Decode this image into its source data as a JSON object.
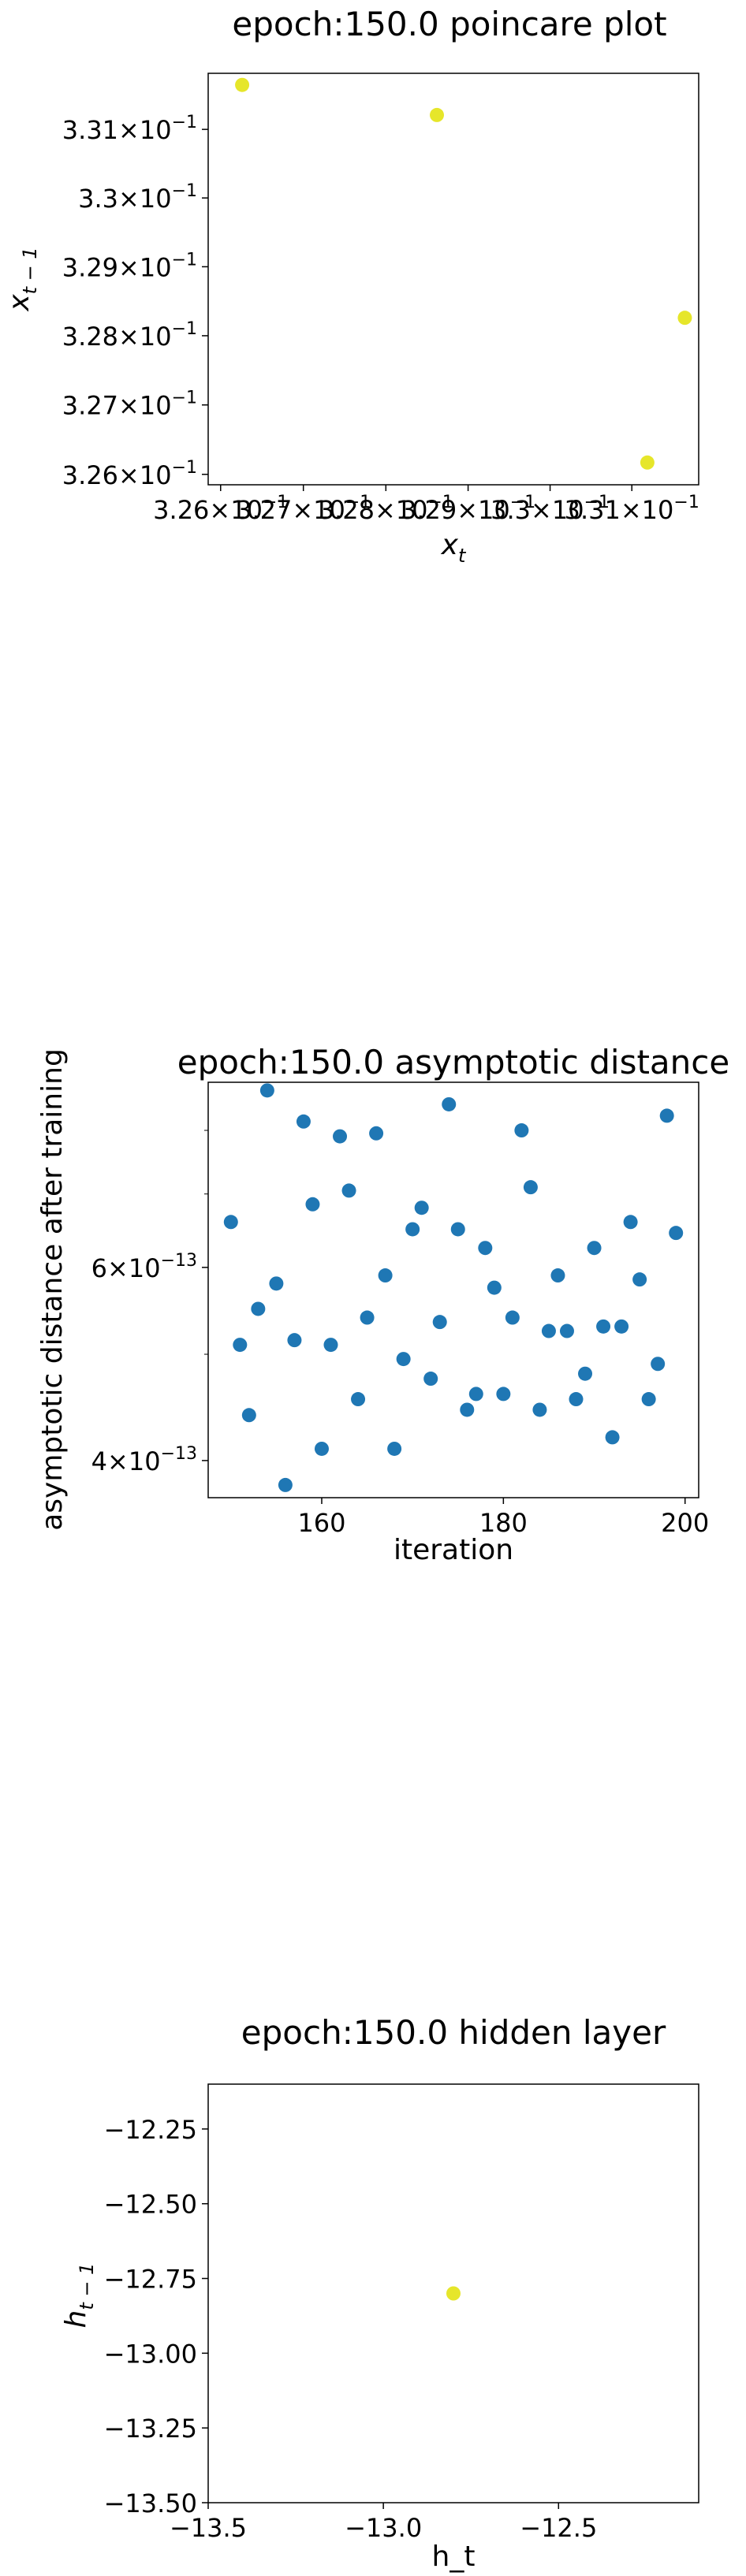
{
  "chart_data": [
    {
      "type": "scatter",
      "title": "epoch:150.0 poincare plot",
      "xlabel": "x",
      "xlabel_sub": "t",
      "ylabel": "x",
      "ylabel_sub": "t − 1",
      "xscale": "log",
      "yscale": "log",
      "xlim": [
        0.32585,
        0.33182
      ],
      "ylim": [
        0.32585,
        0.33182
      ],
      "x_ticks": [
        {
          "mant": "3.26",
          "exp": "−1",
          "v": 0.326
        },
        {
          "mant": "3.27",
          "exp": "−1",
          "v": 0.327
        },
        {
          "mant": "3.28",
          "exp": "−1",
          "v": 0.328
        },
        {
          "mant": "3.29",
          "exp": "−1",
          "v": 0.329
        },
        {
          "mant": "3.3",
          "exp": "−1",
          "v": 0.33
        },
        {
          "mant": "3.31",
          "exp": "−1",
          "v": 0.331
        }
      ],
      "y_ticks": [
        {
          "mant": "3.26",
          "exp": "−1",
          "v": 0.326
        },
        {
          "mant": "3.27",
          "exp": "−1",
          "v": 0.327
        },
        {
          "mant": "3.28",
          "exp": "−1",
          "v": 0.328
        },
        {
          "mant": "3.29",
          "exp": "−1",
          "v": 0.329
        },
        {
          "mant": "3.3",
          "exp": "−1",
          "v": 0.33
        },
        {
          "mant": "3.31",
          "exp": "−1",
          "v": 0.331
        }
      ],
      "points": [
        {
          "x": 0.32626,
          "y": 0.33165
        },
        {
          "x": 0.32862,
          "y": 0.33121
        },
        {
          "x": 0.33119,
          "y": 0.32617
        },
        {
          "x": 0.33165,
          "y": 0.32826
        }
      ],
      "marker_color": "#e6e62a",
      "grid": false
    },
    {
      "type": "scatter",
      "title": "epoch:150.0 asymptotic distance",
      "xlabel": "iteration",
      "ylabel": "asymptotic distance after training",
      "yscale": "log",
      "xlim": [
        147.5,
        201.5
      ],
      "ylim": [
        3.7e-13,
        8.85e-13
      ],
      "x_ticks": [
        {
          "label": "160",
          "v": 160
        },
        {
          "label": "180",
          "v": 180
        },
        {
          "label": "200",
          "v": 200
        }
      ],
      "y_ticks": [
        {
          "mant": "4",
          "exp": "−13",
          "v": 4e-13
        },
        {
          "mant": "6",
          "exp": "−13",
          "v": 6e-13
        }
      ],
      "y_minor_ticks": [
        5e-13,
        7e-13,
        8e-13
      ],
      "points": [
        {
          "x": 150,
          "y": 6.6e-13
        },
        {
          "x": 151,
          "y": 5.1e-13
        },
        {
          "x": 152,
          "y": 4.4e-13
        },
        {
          "x": 153,
          "y": 5.5e-13
        },
        {
          "x": 154,
          "y": 8.7e-13
        },
        {
          "x": 155,
          "y": 5.8e-13
        },
        {
          "x": 156,
          "y": 3.8e-13
        },
        {
          "x": 157,
          "y": 5.15e-13
        },
        {
          "x": 158,
          "y": 8.15e-13
        },
        {
          "x": 159,
          "y": 6.85e-13
        },
        {
          "x": 160,
          "y": 4.1e-13
        },
        {
          "x": 161,
          "y": 5.1e-13
        },
        {
          "x": 162,
          "y": 7.9e-13
        },
        {
          "x": 163,
          "y": 7.05e-13
        },
        {
          "x": 164,
          "y": 4.55e-13
        },
        {
          "x": 165,
          "y": 5.4e-13
        },
        {
          "x": 166,
          "y": 7.95e-13
        },
        {
          "x": 167,
          "y": 5.9e-13
        },
        {
          "x": 168,
          "y": 4.1e-13
        },
        {
          "x": 169,
          "y": 4.95e-13
        },
        {
          "x": 170,
          "y": 6.5e-13
        },
        {
          "x": 171,
          "y": 6.8e-13
        },
        {
          "x": 172,
          "y": 4.75e-13
        },
        {
          "x": 173,
          "y": 5.35e-13
        },
        {
          "x": 174,
          "y": 8.45e-13
        },
        {
          "x": 175,
          "y": 6.5e-13
        },
        {
          "x": 176,
          "y": 4.45e-13
        },
        {
          "x": 177,
          "y": 4.6e-13
        },
        {
          "x": 178,
          "y": 6.25e-13
        },
        {
          "x": 179,
          "y": 5.75e-13
        },
        {
          "x": 180,
          "y": 4.6e-13
        },
        {
          "x": 181,
          "y": 5.4e-13
        },
        {
          "x": 182,
          "y": 8e-13
        },
        {
          "x": 183,
          "y": 7.1e-13
        },
        {
          "x": 184,
          "y": 4.45e-13
        },
        {
          "x": 185,
          "y": 5.25e-13
        },
        {
          "x": 186,
          "y": 5.9e-13
        },
        {
          "x": 187,
          "y": 5.25e-13
        },
        {
          "x": 188,
          "y": 4.55e-13
        },
        {
          "x": 189,
          "y": 4.8e-13
        },
        {
          "x": 190,
          "y": 6.25e-13
        },
        {
          "x": 191,
          "y": 5.3e-13
        },
        {
          "x": 192,
          "y": 4.2e-13
        },
        {
          "x": 193,
          "y": 5.3e-13
        },
        {
          "x": 194,
          "y": 6.6e-13
        },
        {
          "x": 195,
          "y": 5.85e-13
        },
        {
          "x": 196,
          "y": 4.55e-13
        },
        {
          "x": 197,
          "y": 4.9e-13
        },
        {
          "x": 198,
          "y": 8.25e-13
        },
        {
          "x": 199,
          "y": 6.45e-13
        }
      ],
      "marker_color": "#1f77b4",
      "grid": false
    },
    {
      "type": "scatter",
      "title": "epoch:150.0 hidden layer",
      "xlabel": "h_t",
      "ylabel": "h",
      "ylabel_sub": "t − 1",
      "xlim": [
        -13.5,
        -12.1
      ],
      "ylim": [
        -13.5,
        -12.1
      ],
      "x_ticks": [
        {
          "label": "−13.5",
          "v": -13.5
        },
        {
          "label": "−13.0",
          "v": -13.0
        },
        {
          "label": "−12.5",
          "v": -12.5
        }
      ],
      "y_ticks": [
        {
          "label": "−12.25",
          "v": -12.25
        },
        {
          "label": "−12.50",
          "v": -12.5
        },
        {
          "label": "−12.75",
          "v": -12.75
        },
        {
          "label": "−13.00",
          "v": -13.0
        },
        {
          "label": "−13.25",
          "v": -13.25
        },
        {
          "label": "−13.50",
          "v": -13.5
        }
      ],
      "points": [
        {
          "x": -12.8,
          "y": -12.8
        }
      ],
      "marker_color": "#e6e62a",
      "grid": false
    }
  ]
}
